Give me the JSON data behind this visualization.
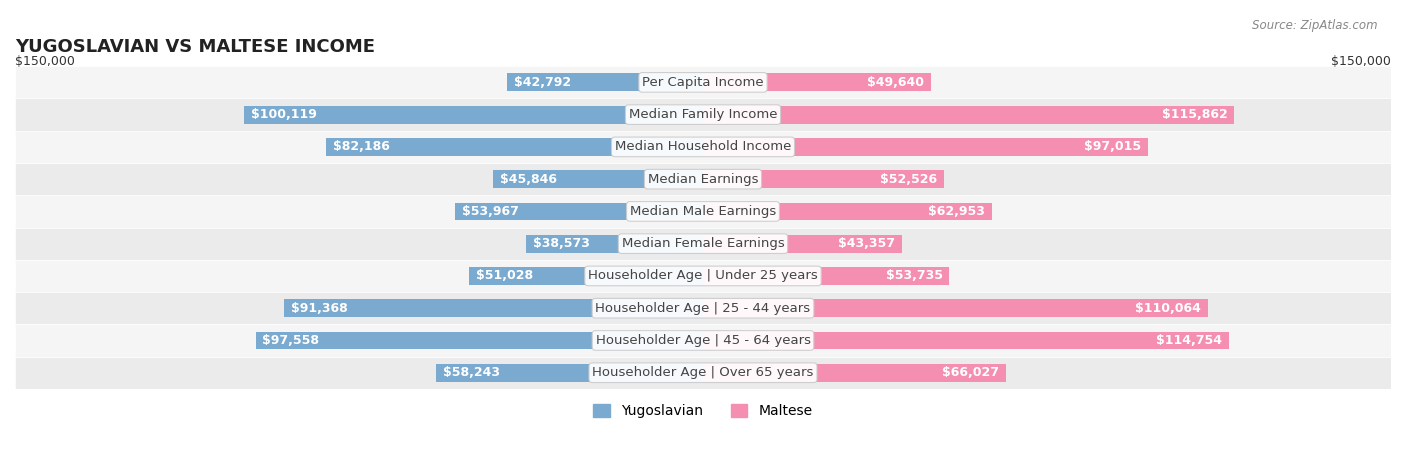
{
  "title": "YUGOSLAVIAN VS MALTESE INCOME",
  "source": "Source: ZipAtlas.com",
  "categories": [
    "Per Capita Income",
    "Median Family Income",
    "Median Household Income",
    "Median Earnings",
    "Median Male Earnings",
    "Median Female Earnings",
    "Householder Age | Under 25 years",
    "Householder Age | 25 - 44 years",
    "Householder Age | 45 - 64 years",
    "Householder Age | Over 65 years"
  ],
  "yugoslavian_values": [
    42792,
    100119,
    82186,
    45846,
    53967,
    38573,
    51028,
    91368,
    97558,
    58243
  ],
  "maltese_values": [
    49640,
    115862,
    97015,
    52526,
    62953,
    43357,
    53735,
    110064,
    114754,
    66027
  ],
  "max_value": 150000,
  "yugoslavian_color": "#7aaad0",
  "maltese_color": "#f48fb1",
  "yugoslavian_dark": "#5b8db8",
  "maltese_dark": "#e07090",
  "label_bg_color": "#ffffff",
  "row_bg_color": "#f0f0f0",
  "row_bg_alt": "#e8e8e8",
  "bar_height": 0.55,
  "axis_label_left": "$150,000",
  "axis_label_right": "$150,000",
  "legend_yug": "Yugoslavian",
  "legend_malt": "Maltese",
  "title_fontsize": 13,
  "label_fontsize": 9.5,
  "value_fontsize": 9,
  "legend_fontsize": 10
}
